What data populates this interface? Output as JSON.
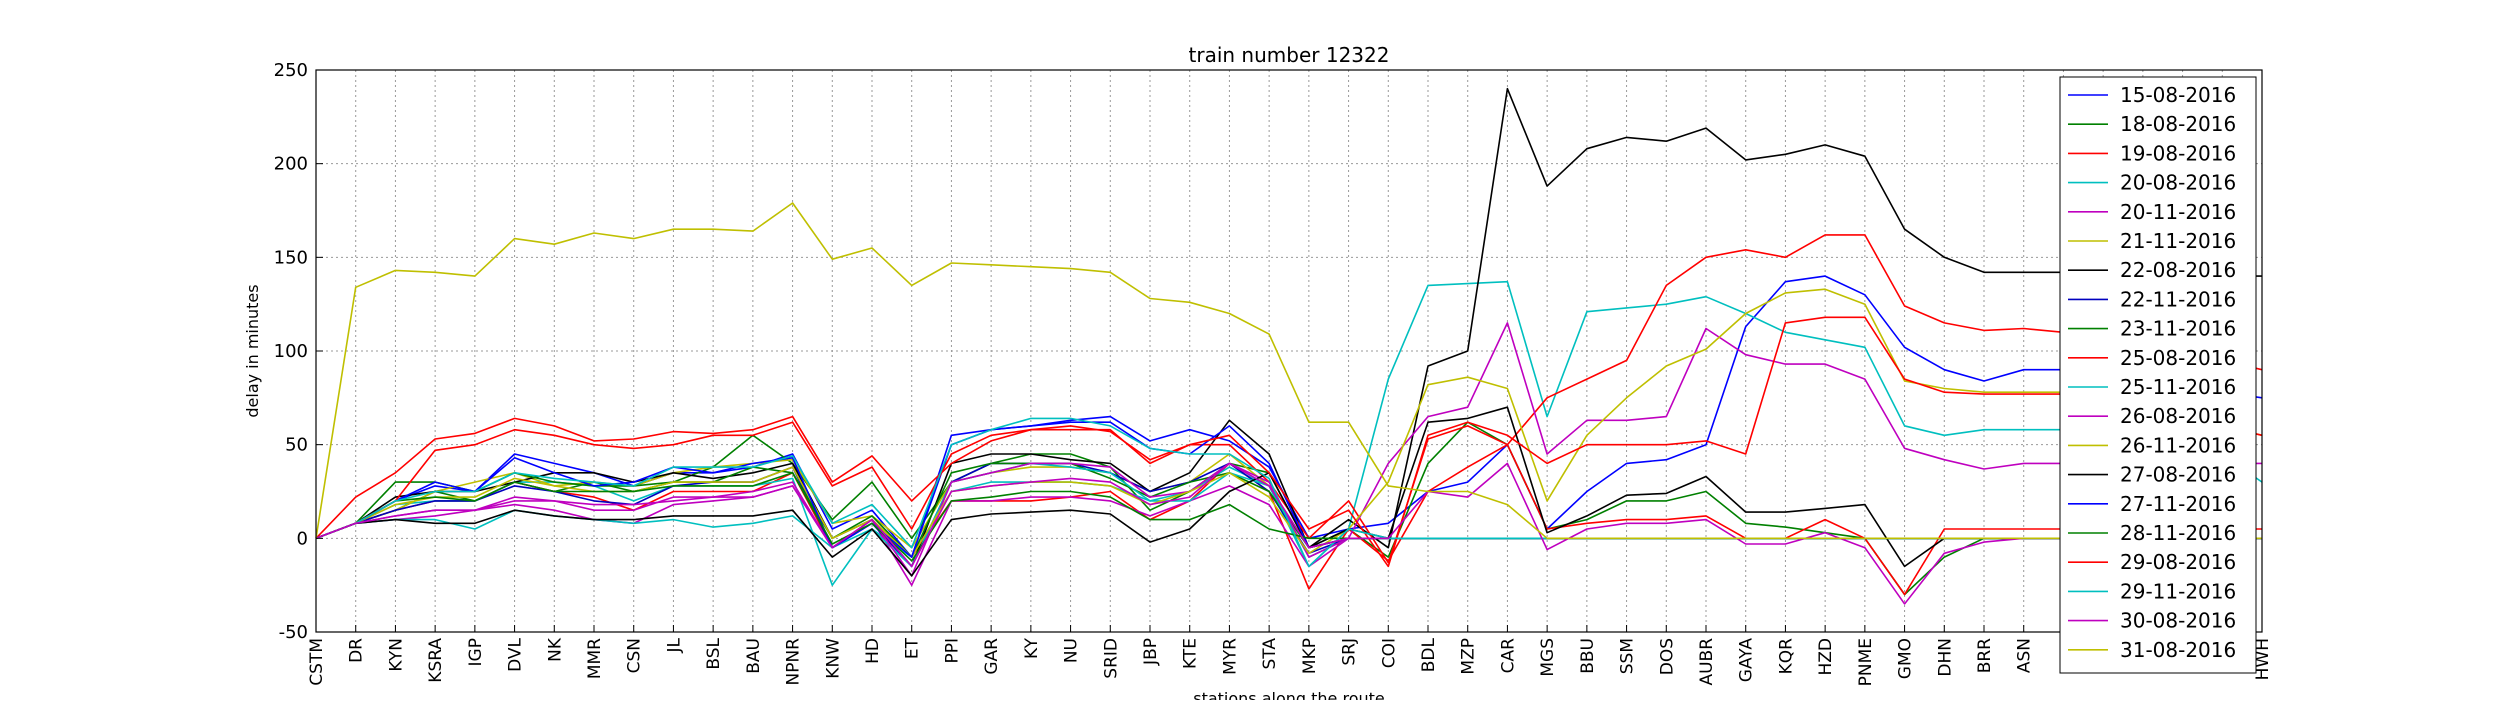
{
  "chart_data": {
    "type": "line",
    "title": "train number 12322",
    "xlabel": "stations along the route",
    "ylabel": "delay in minutes",
    "ylim": [
      -50,
      250
    ],
    "yticks": [
      -50,
      0,
      50,
      100,
      150,
      200,
      250
    ],
    "grid": true,
    "legend_position": "right",
    "categories": [
      "CSTM",
      "DR",
      "KYN",
      "KSRA",
      "IGP",
      "DVL",
      "NK",
      "MMR",
      "CSN",
      "JL",
      "BSL",
      "BAU",
      "NPNR",
      "KNW",
      "HD",
      "ET",
      "PPI",
      "GAR",
      "KY",
      "NU",
      "SRID",
      "JBP",
      "KTE",
      "MYR",
      "STA",
      "MKP",
      "SRJ",
      "COI",
      "BDL",
      "MZP",
      "CAR",
      "MGS",
      "BBU",
      "SSM",
      "DOS",
      "AUBR",
      "GAYA",
      "KQR",
      "HZD",
      "PNME",
      "GMO",
      "DHN",
      "BRR",
      "ASN",
      "",
      "",
      "",
      "",
      "",
      "HWH"
    ],
    "series": [
      {
        "name": "15-08-2016",
        "color": "#0000ff",
        "values": [
          0,
          8,
          20,
          28,
          25,
          45,
          40,
          35,
          28,
          35,
          35,
          38,
          45,
          5,
          15,
          -10,
          55,
          58,
          60,
          63,
          65,
          52,
          58,
          52,
          38,
          0,
          5,
          8,
          25,
          30,
          50,
          5,
          25,
          40,
          42,
          50,
          113,
          137,
          140,
          130,
          102,
          90,
          84,
          90,
          90,
          85,
          80,
          80,
          78,
          75
        ]
      },
      {
        "name": "18-08-2016",
        "color": "#008000",
        "values": [
          0,
          8,
          15,
          25,
          20,
          30,
          25,
          30,
          25,
          30,
          38,
          55,
          40,
          10,
          30,
          0,
          30,
          40,
          45,
          45,
          38,
          15,
          25,
          40,
          35,
          -5,
          5,
          -10,
          40,
          62,
          50,
          5,
          10,
          20,
          20,
          25,
          8,
          6,
          3,
          0,
          -30,
          -10,
          0,
          0,
          0,
          0,
          0,
          0,
          0,
          0
        ]
      },
      {
        "name": "19-08-2016",
        "color": "#ff0000",
        "values": [
          0,
          8,
          15,
          20,
          20,
          30,
          25,
          22,
          15,
          25,
          25,
          25,
          35,
          -5,
          10,
          -10,
          20,
          20,
          20,
          22,
          25,
          10,
          20,
          40,
          25,
          -27,
          5,
          -12,
          25,
          38,
          50,
          5,
          8,
          10,
          10,
          12,
          0,
          0,
          10,
          0,
          -30,
          5,
          5,
          5,
          5,
          5,
          5,
          5,
          5,
          5
        ]
      },
      {
        "name": "20-08-2016",
        "color": "#00bfbf",
        "values": [
          0,
          8,
          18,
          20,
          20,
          30,
          30,
          28,
          20,
          28,
          28,
          28,
          32,
          -25,
          5,
          -10,
          25,
          30,
          30,
          30,
          28,
          20,
          25,
          38,
          28,
          -15,
          5,
          85,
          135,
          136,
          137,
          65,
          121,
          123,
          125,
          129,
          120,
          110,
          106,
          102,
          60,
          55,
          58,
          58,
          58,
          58,
          55,
          50,
          45,
          30
        ]
      },
      {
        "name": "20-11-2016",
        "color": "#bf00bf",
        "values": [
          0,
          8,
          10,
          12,
          15,
          18,
          15,
          10,
          8,
          18,
          20,
          22,
          28,
          -5,
          10,
          -25,
          20,
          20,
          22,
          22,
          20,
          12,
          20,
          28,
          18,
          -15,
          0,
          0,
          0,
          0,
          0,
          0,
          0,
          0,
          0,
          0,
          0,
          0,
          0,
          0,
          0,
          0,
          0,
          0,
          0,
          0,
          0,
          0,
          0,
          0
        ]
      },
      {
        "name": "21-11-2016",
        "color": "#bfbf00",
        "values": [
          0,
          8,
          15,
          25,
          30,
          35,
          28,
          30,
          28,
          35,
          38,
          40,
          42,
          8,
          12,
          -5,
          30,
          35,
          38,
          38,
          35,
          25,
          30,
          45,
          28,
          -5,
          0,
          0,
          0,
          0,
          0,
          0,
          0,
          0,
          0,
          0,
          0,
          0,
          0,
          0,
          0,
          0,
          0,
          0,
          0,
          0,
          0,
          0,
          0,
          0
        ]
      },
      {
        "name": "22-08-2016",
        "color": "#000000",
        "values": [
          0,
          8,
          22,
          25,
          25,
          30,
          35,
          35,
          30,
          35,
          32,
          35,
          40,
          0,
          10,
          -15,
          40,
          45,
          45,
          42,
          40,
          25,
          35,
          63,
          45,
          -5,
          10,
          -5,
          92,
          100,
          240,
          188,
          208,
          214,
          212,
          219,
          202,
          205,
          210,
          204,
          165,
          150,
          142,
          142,
          142,
          142,
          142,
          142,
          140,
          140
        ]
      },
      {
        "name": "22-11-2016",
        "color": "#0000bf",
        "values": [
          0,
          8,
          15,
          20,
          20,
          28,
          25,
          20,
          18,
          28,
          30,
          30,
          38,
          -5,
          8,
          -15,
          30,
          40,
          40,
          40,
          35,
          25,
          30,
          40,
          25,
          -8,
          0,
          0,
          0,
          0,
          0,
          0,
          0,
          0,
          0,
          0,
          0,
          0,
          0,
          0,
          0,
          0,
          0,
          0,
          0,
          0,
          0,
          0,
          0,
          0
        ]
      },
      {
        "name": "23-11-2016",
        "color": "#008000",
        "values": [
          0,
          8,
          30,
          30,
          25,
          35,
          30,
          28,
          28,
          30,
          30,
          38,
          35,
          0,
          12,
          -10,
          35,
          40,
          40,
          40,
          32,
          22,
          30,
          35,
          25,
          -5,
          0,
          0,
          0,
          0,
          0,
          0,
          0,
          0,
          0,
          0,
          0,
          0,
          0,
          0,
          0,
          0,
          0,
          0,
          0,
          0,
          0,
          0,
          0,
          0
        ]
      },
      {
        "name": "25-08-2016",
        "color": "#ff0000",
        "values": [
          0,
          22,
          35,
          53,
          56,
          64,
          60,
          52,
          53,
          57,
          56,
          58,
          65,
          30,
          44,
          20,
          40,
          52,
          58,
          58,
          58,
          40,
          50,
          50,
          30,
          0,
          20,
          -13,
          53,
          60,
          50,
          75,
          85,
          95,
          135,
          150,
          154,
          150,
          162,
          162,
          124,
          115,
          111,
          112,
          110,
          108,
          105,
          100,
          95,
          90
        ]
      },
      {
        "name": "25-11-2016",
        "color": "#00bfbf",
        "values": [
          0,
          8,
          10,
          10,
          5,
          15,
          12,
          10,
          8,
          10,
          6,
          8,
          12,
          -5,
          5,
          -15,
          30,
          35,
          40,
          38,
          35,
          20,
          20,
          35,
          28,
          -10,
          0,
          0,
          0,
          0,
          0,
          0,
          0,
          0,
          0,
          0,
          0,
          0,
          0,
          0,
          0,
          0,
          0,
          0,
          0,
          0,
          0,
          0,
          0,
          0
        ]
      },
      {
        "name": "26-08-2016",
        "color": "#bf00bf",
        "values": [
          0,
          8,
          12,
          15,
          15,
          20,
          20,
          15,
          15,
          22,
          22,
          25,
          30,
          -5,
          10,
          -20,
          30,
          35,
          40,
          40,
          38,
          22,
          25,
          40,
          30,
          -10,
          0,
          40,
          65,
          70,
          115,
          45,
          63,
          63,
          65,
          112,
          98,
          93,
          93,
          85,
          48,
          42,
          37,
          40,
          40,
          40,
          40,
          40,
          40,
          40
        ]
      },
      {
        "name": "26-11-2016",
        "color": "#bfbf00",
        "values": [
          0,
          8,
          18,
          22,
          22,
          32,
          28,
          25,
          25,
          30,
          30,
          30,
          38,
          0,
          10,
          -10,
          25,
          28,
          30,
          30,
          28,
          18,
          25,
          35,
          22,
          -8,
          5,
          30,
          82,
          86,
          80,
          20,
          55,
          75,
          92,
          101,
          120,
          131,
          133,
          125,
          84,
          80,
          78,
          78,
          78,
          75,
          70,
          65,
          60,
          55
        ]
      },
      {
        "name": "27-08-2016",
        "color": "#000000",
        "values": [
          0,
          8,
          10,
          8,
          8,
          15,
          12,
          10,
          10,
          12,
          12,
          12,
          15,
          -10,
          5,
          -20,
          10,
          13,
          14,
          15,
          13,
          -2,
          5,
          25,
          35,
          -5,
          5,
          0,
          62,
          64,
          70,
          3,
          12,
          23,
          24,
          33,
          14,
          14,
          16,
          18,
          -15,
          0,
          0,
          0,
          0,
          0,
          0,
          0,
          0,
          0
        ]
      },
      {
        "name": "27-11-2016",
        "color": "#0000ff",
        "values": [
          0,
          8,
          20,
          30,
          25,
          43,
          35,
          28,
          30,
          38,
          35,
          40,
          43,
          -5,
          8,
          -10,
          50,
          58,
          60,
          62,
          62,
          48,
          45,
          60,
          40,
          -5,
          0,
          0,
          0,
          0,
          0,
          0,
          0,
          0,
          0,
          0,
          0,
          0,
          0,
          0,
          0,
          0,
          0,
          0,
          0,
          0,
          0,
          0,
          0,
          0
        ]
      },
      {
        "name": "28-11-2016",
        "color": "#008000",
        "values": [
          0,
          8,
          20,
          22,
          20,
          30,
          25,
          25,
          25,
          28,
          28,
          28,
          35,
          -3,
          8,
          -12,
          20,
          22,
          25,
          25,
          22,
          10,
          10,
          18,
          5,
          0,
          0,
          0,
          0,
          0,
          0,
          0,
          0,
          0,
          0,
          0,
          0,
          0,
          0,
          0,
          0,
          0,
          0,
          0,
          0,
          0,
          0,
          0,
          0,
          0
        ]
      },
      {
        "name": "29-08-2016",
        "color": "#ff0000",
        "values": [
          0,
          8,
          20,
          47,
          50,
          58,
          55,
          50,
          48,
          50,
          55,
          55,
          62,
          28,
          38,
          5,
          45,
          55,
          58,
          60,
          57,
          42,
          50,
          55,
          35,
          5,
          15,
          -15,
          55,
          62,
          55,
          40,
          50,
          50,
          50,
          52,
          45,
          115,
          118,
          118,
          85,
          78,
          77,
          77,
          77,
          75,
          70,
          65,
          60,
          55
        ]
      },
      {
        "name": "29-11-2016",
        "color": "#00bfbf",
        "values": [
          0,
          8,
          20,
          25,
          25,
          35,
          32,
          30,
          28,
          38,
          38,
          38,
          44,
          8,
          18,
          -5,
          50,
          58,
          64,
          64,
          60,
          48,
          45,
          45,
          32,
          -15,
          5,
          0,
          0,
          0,
          0,
          0,
          0,
          0,
          0,
          0,
          0,
          0,
          0,
          0,
          0,
          0,
          0,
          0,
          0,
          0,
          0,
          0,
          0,
          0
        ]
      },
      {
        "name": "30-08-2016",
        "color": "#bf00bf",
        "values": [
          0,
          8,
          12,
          15,
          15,
          22,
          20,
          18,
          18,
          20,
          22,
          22,
          28,
          -5,
          10,
          -15,
          25,
          28,
          30,
          32,
          30,
          18,
          22,
          40,
          28,
          -5,
          0,
          0,
          25,
          22,
          40,
          -6,
          5,
          8,
          8,
          10,
          -3,
          -3,
          3,
          -5,
          -35,
          -8,
          -2,
          0,
          0,
          0,
          0,
          0,
          0,
          0
        ]
      },
      {
        "name": "31-08-2016",
        "color": "#bfbf00",
        "values": [
          0,
          134,
          143,
          142,
          140,
          160,
          157,
          163,
          160,
          165,
          165,
          164,
          179,
          149,
          155,
          135,
          147,
          146,
          145,
          144,
          142,
          128,
          126,
          120,
          109,
          62,
          62,
          28,
          25,
          25,
          18,
          0,
          0,
          0,
          0,
          0,
          0,
          0,
          0,
          0,
          0,
          0,
          0,
          0,
          0,
          0,
          0,
          0,
          0,
          0
        ]
      }
    ]
  }
}
